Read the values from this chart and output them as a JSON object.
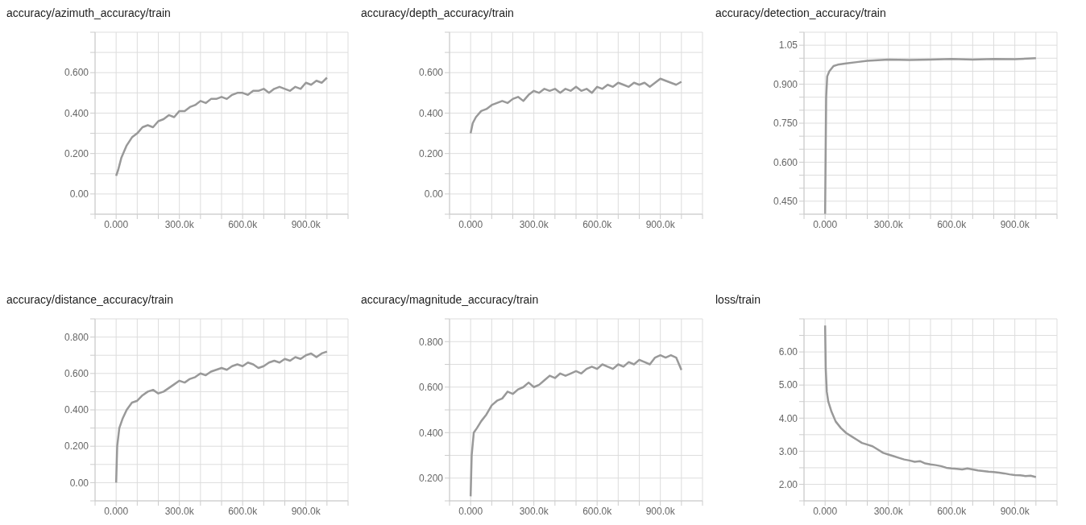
{
  "chart_data": [
    {
      "type": "line",
      "title": "accuracy/azimuth_accuracy/train",
      "grid": true,
      "x": [
        0,
        10000,
        25000,
        50000,
        75000,
        100000,
        125000,
        150000,
        175000,
        200000,
        225000,
        250000,
        275000,
        300000,
        325000,
        350000,
        375000,
        400000,
        425000,
        450000,
        475000,
        500000,
        525000,
        550000,
        575000,
        600000,
        625000,
        650000,
        675000,
        700000,
        725000,
        750000,
        775000,
        800000,
        825000,
        850000,
        875000,
        900000,
        925000,
        950000,
        975000,
        1000000
      ],
      "series": [
        {
          "color": "#999999",
          "values": [
            0.09,
            0.12,
            0.18,
            0.24,
            0.28,
            0.3,
            0.33,
            0.34,
            0.33,
            0.36,
            0.37,
            0.39,
            0.38,
            0.41,
            0.41,
            0.43,
            0.44,
            0.46,
            0.45,
            0.47,
            0.47,
            0.48,
            0.47,
            0.49,
            0.5,
            0.5,
            0.49,
            0.51,
            0.51,
            0.52,
            0.5,
            0.52,
            0.53,
            0.52,
            0.51,
            0.53,
            0.52,
            0.55,
            0.54,
            0.56,
            0.55,
            0.575
          ]
        }
      ],
      "xlim": [
        -100000,
        1100000
      ],
      "xticks": [
        {
          "value": -100000,
          "label": null
        },
        {
          "value": 0,
          "label": "0.000"
        },
        {
          "value": 100000,
          "label": null
        },
        {
          "value": 200000,
          "label": null
        },
        {
          "value": 300000,
          "label": "300.0k"
        },
        {
          "value": 400000,
          "label": null
        },
        {
          "value": 500000,
          "label": null
        },
        {
          "value": 600000,
          "label": "600.0k"
        },
        {
          "value": 700000,
          "label": null
        },
        {
          "value": 800000,
          "label": null
        },
        {
          "value": 900000,
          "label": "900.0k"
        },
        {
          "value": 1000000,
          "label": null
        },
        {
          "value": 1100000,
          "label": null
        }
      ],
      "ylim": [
        -0.1,
        0.8
      ],
      "yticks": [
        {
          "value": -0.1,
          "label": null
        },
        {
          "value": 0,
          "label": "0.00"
        },
        {
          "value": 0.1,
          "label": null
        },
        {
          "value": 0.2,
          "label": "0.200"
        },
        {
          "value": 0.3,
          "label": null
        },
        {
          "value": 0.4,
          "label": "0.400"
        },
        {
          "value": 0.5,
          "label": null
        },
        {
          "value": 0.6,
          "label": "0.600"
        },
        {
          "value": 0.7,
          "label": null
        },
        {
          "value": 0.8,
          "label": null
        }
      ]
    },
    {
      "type": "line",
      "title": "accuracy/depth_accuracy/train",
      "grid": true,
      "x": [
        0,
        10000,
        25000,
        50000,
        75000,
        100000,
        125000,
        150000,
        175000,
        200000,
        225000,
        250000,
        275000,
        300000,
        325000,
        350000,
        375000,
        400000,
        425000,
        450000,
        475000,
        500000,
        525000,
        550000,
        575000,
        600000,
        625000,
        650000,
        675000,
        700000,
        725000,
        750000,
        775000,
        800000,
        825000,
        850000,
        875000,
        900000,
        925000,
        950000,
        975000,
        1000000
      ],
      "series": [
        {
          "color": "#999999",
          "values": [
            0.3,
            0.35,
            0.38,
            0.41,
            0.42,
            0.44,
            0.45,
            0.46,
            0.45,
            0.47,
            0.48,
            0.46,
            0.49,
            0.51,
            0.5,
            0.52,
            0.51,
            0.52,
            0.5,
            0.52,
            0.51,
            0.53,
            0.51,
            0.52,
            0.5,
            0.53,
            0.52,
            0.54,
            0.53,
            0.55,
            0.54,
            0.53,
            0.55,
            0.54,
            0.55,
            0.53,
            0.55,
            0.57,
            0.56,
            0.55,
            0.54,
            0.555
          ]
        }
      ],
      "xlim": [
        -100000,
        1100000
      ],
      "xticks": [
        {
          "value": -100000,
          "label": null
        },
        {
          "value": 0,
          "label": "0.000"
        },
        {
          "value": 100000,
          "label": null
        },
        {
          "value": 200000,
          "label": null
        },
        {
          "value": 300000,
          "label": "300.0k"
        },
        {
          "value": 400000,
          "label": null
        },
        {
          "value": 500000,
          "label": null
        },
        {
          "value": 600000,
          "label": "600.0k"
        },
        {
          "value": 700000,
          "label": null
        },
        {
          "value": 800000,
          "label": null
        },
        {
          "value": 900000,
          "label": "900.0k"
        },
        {
          "value": 1000000,
          "label": null
        },
        {
          "value": 1100000,
          "label": null
        }
      ],
      "ylim": [
        -0.1,
        0.8
      ],
      "yticks": [
        {
          "value": -0.1,
          "label": null
        },
        {
          "value": 0,
          "label": "0.00"
        },
        {
          "value": 0.1,
          "label": null
        },
        {
          "value": 0.2,
          "label": "0.200"
        },
        {
          "value": 0.3,
          "label": null
        },
        {
          "value": 0.4,
          "label": "0.400"
        },
        {
          "value": 0.5,
          "label": null
        },
        {
          "value": 0.6,
          "label": "0.600"
        },
        {
          "value": 0.7,
          "label": null
        },
        {
          "value": 0.8,
          "label": null
        }
      ]
    },
    {
      "type": "line",
      "title": "accuracy/detection_accuracy/train",
      "grid": true,
      "x": [
        0,
        5000,
        10000,
        20000,
        40000,
        60000,
        100000,
        150000,
        200000,
        300000,
        400000,
        500000,
        600000,
        700000,
        800000,
        900000,
        1000000
      ],
      "series": [
        {
          "color": "#999999",
          "values": [
            0.4,
            0.85,
            0.93,
            0.95,
            0.97,
            0.975,
            0.98,
            0.985,
            0.99,
            0.995,
            0.993,
            0.995,
            0.997,
            0.995,
            0.997,
            0.996,
            1.0
          ]
        }
      ],
      "xlim": [
        -100000,
        1100000
      ],
      "xticks": [
        {
          "value": -100000,
          "label": null
        },
        {
          "value": 0,
          "label": "0.000"
        },
        {
          "value": 100000,
          "label": null
        },
        {
          "value": 200000,
          "label": null
        },
        {
          "value": 300000,
          "label": "300.0k"
        },
        {
          "value": 400000,
          "label": null
        },
        {
          "value": 500000,
          "label": null
        },
        {
          "value": 600000,
          "label": "600.0k"
        },
        {
          "value": 700000,
          "label": null
        },
        {
          "value": 800000,
          "label": null
        },
        {
          "value": 900000,
          "label": "900.0k"
        },
        {
          "value": 1000000,
          "label": null
        },
        {
          "value": 1100000,
          "label": null
        }
      ],
      "ylim": [
        0.4,
        1.1
      ],
      "yticks": [
        {
          "value": 0.4,
          "label": null
        },
        {
          "value": 0.45,
          "label": "0.450"
        },
        {
          "value": 0.5,
          "label": null
        },
        {
          "value": 0.55,
          "label": null
        },
        {
          "value": 0.6,
          "label": "0.600"
        },
        {
          "value": 0.65,
          "label": null
        },
        {
          "value": 0.7,
          "label": null
        },
        {
          "value": 0.75,
          "label": "0.750"
        },
        {
          "value": 0.8,
          "label": null
        },
        {
          "value": 0.85,
          "label": null
        },
        {
          "value": 0.9,
          "label": "0.900"
        },
        {
          "value": 0.95,
          "label": null
        },
        {
          "value": 1.0,
          "label": null
        },
        {
          "value": 1.05,
          "label": "1.05"
        },
        {
          "value": 1.1,
          "label": null
        }
      ]
    },
    {
      "type": "line",
      "title": "accuracy/distance_accuracy/train",
      "grid": true,
      "x": [
        0,
        5000,
        15000,
        30000,
        50000,
        75000,
        100000,
        125000,
        150000,
        175000,
        200000,
        225000,
        250000,
        275000,
        300000,
        325000,
        350000,
        375000,
        400000,
        425000,
        450000,
        475000,
        500000,
        525000,
        550000,
        575000,
        600000,
        625000,
        650000,
        675000,
        700000,
        725000,
        750000,
        775000,
        800000,
        825000,
        850000,
        875000,
        900000,
        925000,
        950000,
        975000,
        1000000
      ],
      "series": [
        {
          "color": "#999999",
          "values": [
            0.0,
            0.2,
            0.3,
            0.35,
            0.4,
            0.44,
            0.45,
            0.48,
            0.5,
            0.51,
            0.49,
            0.5,
            0.52,
            0.54,
            0.56,
            0.55,
            0.57,
            0.58,
            0.6,
            0.59,
            0.61,
            0.62,
            0.63,
            0.62,
            0.64,
            0.65,
            0.64,
            0.66,
            0.65,
            0.63,
            0.64,
            0.66,
            0.67,
            0.66,
            0.68,
            0.67,
            0.69,
            0.68,
            0.7,
            0.71,
            0.69,
            0.71,
            0.72
          ]
        }
      ],
      "xlim": [
        -100000,
        1100000
      ],
      "xticks": [
        {
          "value": -100000,
          "label": null
        },
        {
          "value": 0,
          "label": "0.000"
        },
        {
          "value": 100000,
          "label": null
        },
        {
          "value": 200000,
          "label": null
        },
        {
          "value": 300000,
          "label": "300.0k"
        },
        {
          "value": 400000,
          "label": null
        },
        {
          "value": 500000,
          "label": null
        },
        {
          "value": 600000,
          "label": "600.0k"
        },
        {
          "value": 700000,
          "label": null
        },
        {
          "value": 800000,
          "label": null
        },
        {
          "value": 900000,
          "label": "900.0k"
        },
        {
          "value": 1000000,
          "label": null
        },
        {
          "value": 1100000,
          "label": null
        }
      ],
      "ylim": [
        -0.1,
        0.9
      ],
      "yticks": [
        {
          "value": -0.1,
          "label": null
        },
        {
          "value": 0,
          "label": "0.00"
        },
        {
          "value": 0.1,
          "label": null
        },
        {
          "value": 0.2,
          "label": "0.200"
        },
        {
          "value": 0.3,
          "label": null
        },
        {
          "value": 0.4,
          "label": "0.400"
        },
        {
          "value": 0.5,
          "label": null
        },
        {
          "value": 0.6,
          "label": "0.600"
        },
        {
          "value": 0.7,
          "label": null
        },
        {
          "value": 0.8,
          "label": "0.800"
        },
        {
          "value": 0.9,
          "label": null
        }
      ]
    },
    {
      "type": "line",
      "title": "accuracy/magnitude_accuracy/train",
      "grid": true,
      "x": [
        0,
        5000,
        15000,
        30000,
        50000,
        75000,
        100000,
        125000,
        150000,
        175000,
        200000,
        225000,
        250000,
        275000,
        300000,
        325000,
        350000,
        375000,
        400000,
        425000,
        450000,
        475000,
        500000,
        525000,
        550000,
        575000,
        600000,
        625000,
        650000,
        675000,
        700000,
        725000,
        750000,
        775000,
        800000,
        825000,
        850000,
        875000,
        900000,
        925000,
        950000,
        975000,
        1000000
      ],
      "series": [
        {
          "color": "#999999",
          "values": [
            0.12,
            0.3,
            0.4,
            0.42,
            0.45,
            0.48,
            0.52,
            0.54,
            0.55,
            0.58,
            0.57,
            0.59,
            0.6,
            0.62,
            0.6,
            0.61,
            0.63,
            0.65,
            0.64,
            0.66,
            0.65,
            0.66,
            0.67,
            0.66,
            0.68,
            0.69,
            0.68,
            0.7,
            0.69,
            0.68,
            0.7,
            0.69,
            0.71,
            0.7,
            0.72,
            0.71,
            0.7,
            0.73,
            0.74,
            0.73,
            0.74,
            0.73,
            0.675
          ]
        }
      ],
      "xlim": [
        -100000,
        1100000
      ],
      "xticks": [
        {
          "value": -100000,
          "label": null
        },
        {
          "value": 0,
          "label": "0.000"
        },
        {
          "value": 100000,
          "label": null
        },
        {
          "value": 200000,
          "label": null
        },
        {
          "value": 300000,
          "label": "300.0k"
        },
        {
          "value": 400000,
          "label": null
        },
        {
          "value": 500000,
          "label": null
        },
        {
          "value": 600000,
          "label": "600.0k"
        },
        {
          "value": 700000,
          "label": null
        },
        {
          "value": 800000,
          "label": null
        },
        {
          "value": 900000,
          "label": "900.0k"
        },
        {
          "value": 1000000,
          "label": null
        },
        {
          "value": 1100000,
          "label": null
        }
      ],
      "ylim": [
        0.1,
        0.9
      ],
      "yticks": [
        {
          "value": 0.1,
          "label": null
        },
        {
          "value": 0.2,
          "label": "0.200"
        },
        {
          "value": 0.3,
          "label": null
        },
        {
          "value": 0.4,
          "label": "0.400"
        },
        {
          "value": 0.5,
          "label": null
        },
        {
          "value": 0.6,
          "label": "0.600"
        },
        {
          "value": 0.7,
          "label": null
        },
        {
          "value": 0.8,
          "label": "0.800"
        },
        {
          "value": 0.9,
          "label": null
        }
      ]
    },
    {
      "type": "line",
      "title": "loss/train",
      "grid": true,
      "x": [
        0,
        3000,
        8000,
        15000,
        30000,
        50000,
        75000,
        100000,
        125000,
        150000,
        175000,
        200000,
        225000,
        250000,
        275000,
        300000,
        325000,
        350000,
        375000,
        400000,
        425000,
        450000,
        475000,
        500000,
        525000,
        550000,
        575000,
        600000,
        625000,
        650000,
        675000,
        700000,
        725000,
        750000,
        775000,
        800000,
        825000,
        850000,
        875000,
        900000,
        925000,
        950000,
        975000,
        1000000
      ],
      "series": [
        {
          "color": "#999999",
          "values": [
            6.8,
            5.5,
            4.8,
            4.5,
            4.2,
            3.9,
            3.7,
            3.55,
            3.45,
            3.35,
            3.25,
            3.2,
            3.15,
            3.05,
            2.95,
            2.9,
            2.85,
            2.8,
            2.75,
            2.72,
            2.68,
            2.7,
            2.63,
            2.6,
            2.58,
            2.55,
            2.5,
            2.48,
            2.47,
            2.45,
            2.48,
            2.45,
            2.42,
            2.4,
            2.38,
            2.37,
            2.35,
            2.33,
            2.3,
            2.28,
            2.27,
            2.25,
            2.26,
            2.22
          ]
        }
      ],
      "xlim": [
        -100000,
        1100000
      ],
      "xticks": [
        {
          "value": -100000,
          "label": null
        },
        {
          "value": 0,
          "label": "0.000"
        },
        {
          "value": 100000,
          "label": null
        },
        {
          "value": 200000,
          "label": null
        },
        {
          "value": 300000,
          "label": "300.0k"
        },
        {
          "value": 400000,
          "label": null
        },
        {
          "value": 500000,
          "label": null
        },
        {
          "value": 600000,
          "label": "600.0k"
        },
        {
          "value": 700000,
          "label": null
        },
        {
          "value": 800000,
          "label": null
        },
        {
          "value": 900000,
          "label": "900.0k"
        },
        {
          "value": 1000000,
          "label": null
        },
        {
          "value": 1100000,
          "label": null
        }
      ],
      "ylim": [
        1.5,
        7.0
      ],
      "yticks": [
        {
          "value": 1.5,
          "label": null
        },
        {
          "value": 2.0,
          "label": "2.00"
        },
        {
          "value": 2.5,
          "label": null
        },
        {
          "value": 3.0,
          "label": "3.00"
        },
        {
          "value": 3.5,
          "label": null
        },
        {
          "value": 4.0,
          "label": "4.00"
        },
        {
          "value": 4.5,
          "label": null
        },
        {
          "value": 5.0,
          "label": "5.00"
        },
        {
          "value": 5.5,
          "label": null
        },
        {
          "value": 6.0,
          "label": "6.00"
        },
        {
          "value": 6.5,
          "label": null
        },
        {
          "value": 7.0,
          "label": null
        }
      ]
    }
  ]
}
